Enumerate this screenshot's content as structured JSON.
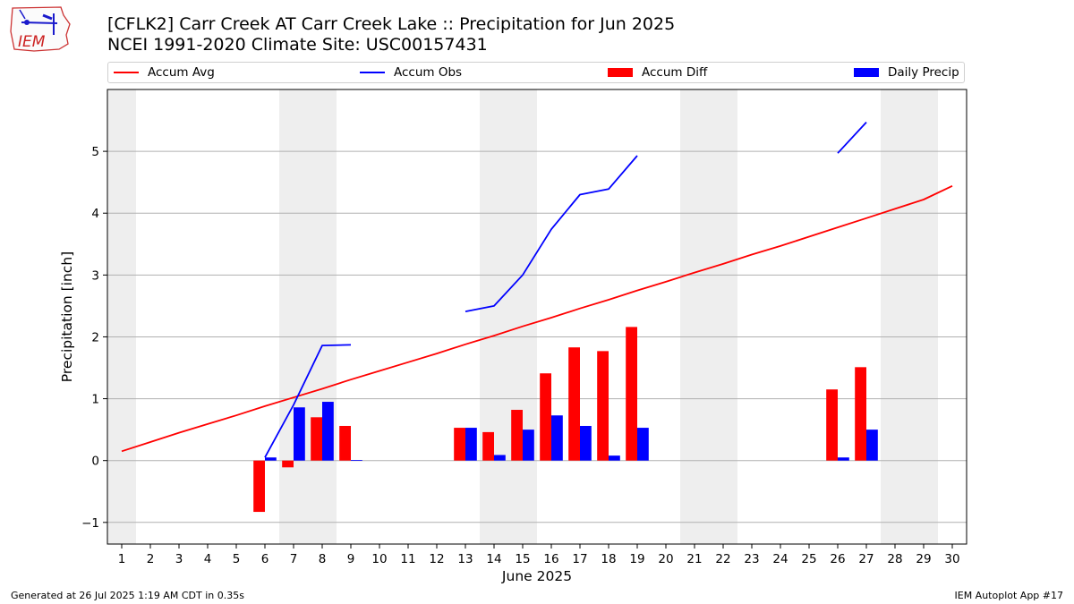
{
  "header": {
    "title_line1": "[CFLK2] Carr Creek  AT Carr Creek Lake :: Precipitation for Jun 2025",
    "title_line2": "NCEI 1991-2020 Climate Site: USC00157431",
    "logo_text": "IEM"
  },
  "footer": {
    "left": "Generated at 26 Jul 2025 1:19 AM CDT in 0.35s",
    "right": "IEM Autoplot App #17"
  },
  "colors": {
    "avg": "#ff0000",
    "obs": "#0000ff",
    "weekend_shade": "#eeeeee",
    "grid": "#b0b0b0"
  },
  "chart_data": {
    "type": "bar",
    "xlabel": "June 2025",
    "ylabel": "Precipitation [inch]",
    "xlim": [
      0.5,
      30.5
    ],
    "ylim": [
      -1.35,
      6.0
    ],
    "yticks": [
      -1,
      0,
      1,
      2,
      3,
      4,
      5
    ],
    "ytick_labels": [
      "−1",
      "0",
      "1",
      "2",
      "3",
      "4",
      "5"
    ],
    "x": [
      1,
      2,
      3,
      4,
      5,
      6,
      7,
      8,
      9,
      10,
      11,
      12,
      13,
      14,
      15,
      16,
      17,
      18,
      19,
      20,
      21,
      22,
      23,
      24,
      25,
      26,
      27,
      28,
      29,
      30
    ],
    "x_labels": [
      "1",
      "2",
      "3",
      "4",
      "5",
      "6",
      "7",
      "8",
      "9",
      "10",
      "11",
      "12",
      "13",
      "14",
      "15",
      "16",
      "17",
      "18",
      "19",
      "20",
      "21",
      "22",
      "23",
      "24",
      "25",
      "26",
      "27",
      "28",
      "29",
      "30"
    ],
    "weekend_bands": [
      [
        0.5,
        1.5
      ],
      [
        6.5,
        8.5
      ],
      [
        13.5,
        15.5
      ],
      [
        20.5,
        22.5
      ],
      [
        27.5,
        29.5
      ]
    ],
    "grid": true,
    "legend_position": "top",
    "series": [
      {
        "name": "Accum Avg",
        "kind": "line",
        "values": [
          0.15,
          0.3,
          0.45,
          0.59,
          0.73,
          0.88,
          1.02,
          1.16,
          1.31,
          1.45,
          1.59,
          1.73,
          1.88,
          2.02,
          2.17,
          2.31,
          2.46,
          2.6,
          2.75,
          2.89,
          3.04,
          3.18,
          3.33,
          3.47,
          3.62,
          3.77,
          3.92,
          4.07,
          4.22,
          4.44
        ]
      },
      {
        "name": "Accum Obs",
        "kind": "line",
        "values": [
          null,
          null,
          null,
          null,
          null,
          0.05,
          0.9,
          1.86,
          1.87,
          null,
          null,
          null,
          2.41,
          2.5,
          3.0,
          3.74,
          4.3,
          4.39,
          4.93,
          null,
          null,
          null,
          null,
          null,
          null,
          4.97,
          5.47,
          null,
          null,
          null
        ]
      },
      {
        "name": "Accum Diff",
        "kind": "bar",
        "values": [
          null,
          null,
          null,
          null,
          null,
          -0.83,
          -0.11,
          0.7,
          0.56,
          null,
          null,
          null,
          0.53,
          0.46,
          0.82,
          1.41,
          1.83,
          1.77,
          2.16,
          null,
          null,
          null,
          null,
          null,
          null,
          1.15,
          1.51,
          null,
          null,
          null
        ]
      },
      {
        "name": "Daily Precip",
        "kind": "bar",
        "values": [
          null,
          null,
          null,
          null,
          null,
          0.05,
          0.86,
          0.95,
          0.01,
          null,
          null,
          null,
          0.53,
          0.09,
          0.5,
          0.73,
          0.56,
          0.08,
          0.53,
          null,
          null,
          null,
          null,
          null,
          null,
          0.05,
          0.5,
          null,
          null,
          null
        ]
      }
    ]
  }
}
